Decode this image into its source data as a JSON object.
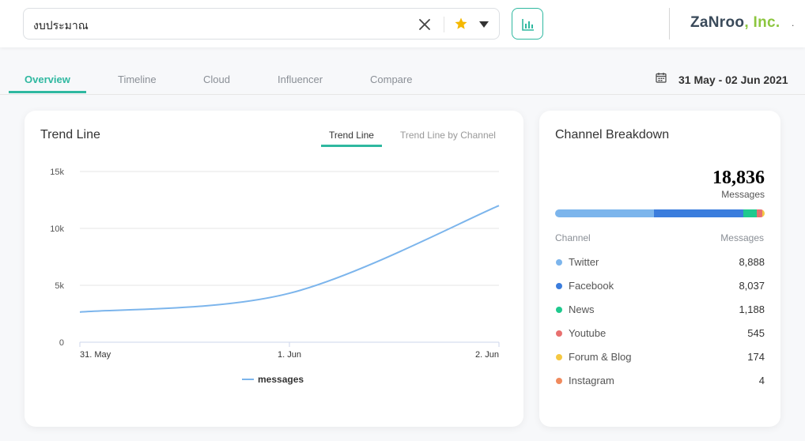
{
  "header": {
    "search_value": "งบประมาณ",
    "logo_main": "ZaNroo",
    "logo_suffix": "Inc.",
    "logo_dot": ".",
    "accent_color": "#2fb8a0"
  },
  "tabs": [
    {
      "label": "Overview",
      "active": true
    },
    {
      "label": "Timeline",
      "active": false
    },
    {
      "label": "Cloud",
      "active": false
    },
    {
      "label": "Influencer",
      "active": false
    },
    {
      "label": "Compare",
      "active": false
    }
  ],
  "date_range": "31 May - 02 Jun 2021",
  "trend": {
    "title": "Trend Line",
    "subtabs": [
      {
        "label": "Trend Line",
        "active": true
      },
      {
        "label": "Trend Line by Channel",
        "active": false
      }
    ]
  },
  "chart_data": {
    "type": "line",
    "title": "Trend Line",
    "x": [
      "31. May",
      "1. Jun",
      "2. Jun"
    ],
    "yticks": [
      "0",
      "5k",
      "10k",
      "15k"
    ],
    "ylim": [
      0,
      15000
    ],
    "series": [
      {
        "name": "messages",
        "color": "#7cb5ec",
        "values": [
          2650,
          4300,
          12000
        ]
      }
    ],
    "legend": "bottom-center",
    "grid": true
  },
  "channel": {
    "title": "Channel Breakdown",
    "total": "18,836",
    "total_label": "Messages",
    "col_channel": "Channel",
    "col_messages": "Messages",
    "rows": [
      {
        "name": "Twitter",
        "value": "8,888",
        "count": 8888,
        "color": "#7cb5ec"
      },
      {
        "name": "Facebook",
        "value": "8,037",
        "count": 8037,
        "color": "#3b7ddd"
      },
      {
        "name": "News",
        "value": "1,188",
        "count": 1188,
        "color": "#1fc98e"
      },
      {
        "name": "Youtube",
        "value": "545",
        "count": 545,
        "color": "#e8706f"
      },
      {
        "name": "Forum & Blog",
        "value": "174",
        "count": 174,
        "color": "#f5c842"
      },
      {
        "name": "Instagram",
        "value": "4",
        "count": 4,
        "color": "#f08a5d"
      }
    ]
  }
}
